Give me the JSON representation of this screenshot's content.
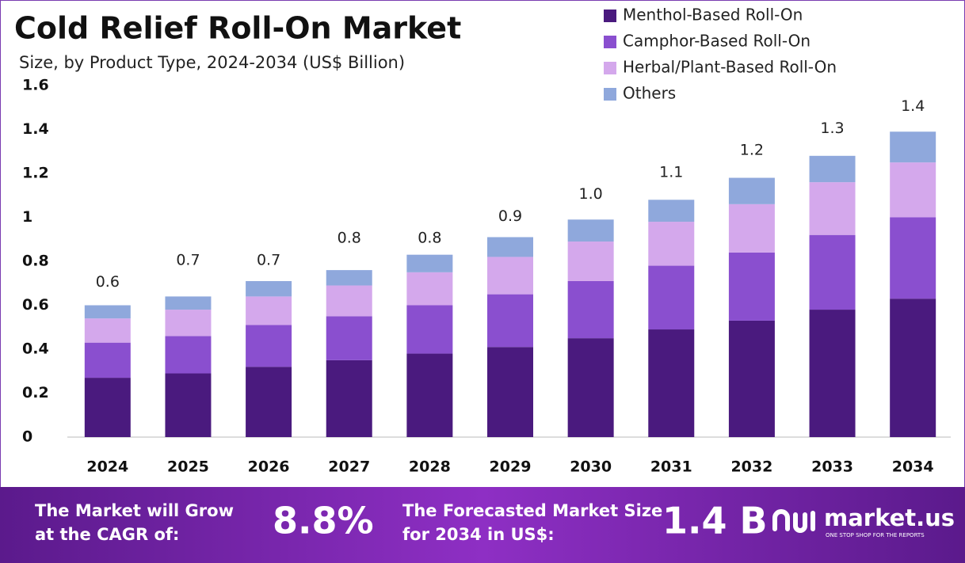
{
  "chart_data": {
    "type": "stacked_bar",
    "title": "Cold Relief Roll-On Market",
    "subtitle": "Size, by Product Type, 2024-2034 (US$ Billion)",
    "categories": [
      "2024",
      "2025",
      "2026",
      "2027",
      "2028",
      "2029",
      "2030",
      "2031",
      "2032",
      "2033",
      "2034"
    ],
    "series": [
      {
        "name": "Menthol-Based Roll-On",
        "color": "#4a1a7e",
        "values": [
          0.27,
          0.29,
          0.32,
          0.35,
          0.38,
          0.41,
          0.45,
          0.49,
          0.53,
          0.58,
          0.63
        ]
      },
      {
        "name": "Camphor-Based Roll-On",
        "color": "#8a4fcf",
        "values": [
          0.16,
          0.17,
          0.19,
          0.2,
          0.22,
          0.24,
          0.26,
          0.29,
          0.31,
          0.34,
          0.37
        ]
      },
      {
        "name": "Herbal/Plant-Based Roll-On",
        "color": "#d4a8ec",
        "values": [
          0.11,
          0.12,
          0.13,
          0.14,
          0.15,
          0.17,
          0.18,
          0.2,
          0.22,
          0.24,
          0.25
        ]
      },
      {
        "name": "Others",
        "color": "#8fa8dc",
        "values": [
          0.06,
          0.06,
          0.07,
          0.07,
          0.08,
          0.09,
          0.1,
          0.1,
          0.12,
          0.12,
          0.14
        ]
      }
    ],
    "totals": {
      "values": [
        0.6,
        0.7,
        0.7,
        0.8,
        0.8,
        0.9,
        1.0,
        1.1,
        1.2,
        1.3,
        1.4
      ],
      "value_labels": [
        "0.6",
        "0.7",
        "0.7",
        "0.8",
        "0.8",
        "0.9",
        "1.0",
        "1.1",
        "1.2",
        "1.3",
        "1.4"
      ]
    },
    "ylim": [
      0,
      1.6
    ],
    "yticks": [
      0,
      0.2,
      0.4,
      0.6,
      0.8,
      1,
      1.2,
      1.4,
      1.6
    ],
    "grid": false
  },
  "footer": {
    "cagr_text": "The Market will Grow at the CAGR of:",
    "cagr_value": "8.8%",
    "forecast_text": "The Forecasted Market Size for 2034 in US$:",
    "forecast_value": "1.4 B",
    "brand": "market.us",
    "tagline": "ONE STOP SHOP FOR THE REPORTS"
  }
}
